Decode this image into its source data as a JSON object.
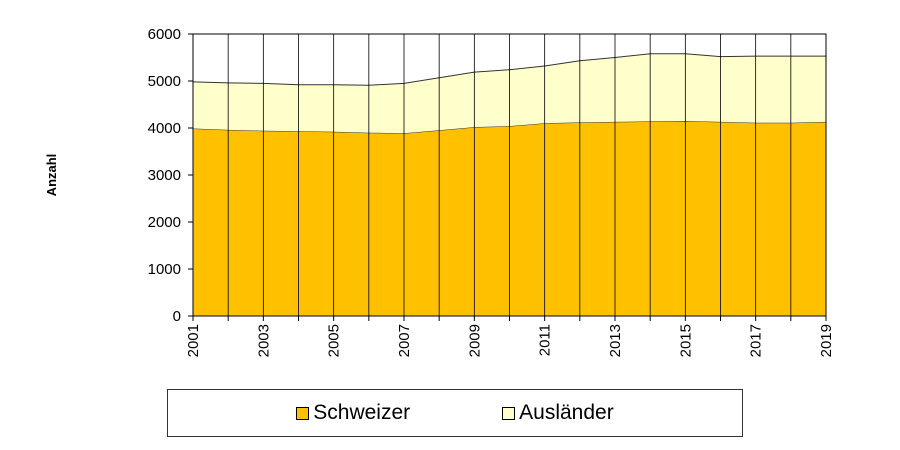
{
  "chart_data": {
    "type": "area",
    "stacked": true,
    "title": "",
    "xlabel": "",
    "ylabel": "Anzahl",
    "ylim": [
      0,
      6000
    ],
    "y_ticks": [
      "0",
      "1000",
      "2000",
      "3000",
      "4000",
      "5000",
      "6000"
    ],
    "x": [
      2001,
      2002,
      2003,
      2004,
      2005,
      2006,
      2007,
      2008,
      2009,
      2010,
      2011,
      2012,
      2013,
      2014,
      2015,
      2016,
      2017,
      2018,
      2019
    ],
    "x_tick_labels": [
      "2001",
      "2003",
      "2005",
      "2007",
      "2009",
      "2011",
      "2013",
      "2015",
      "2017",
      "2019"
    ],
    "series": [
      {
        "name": "Schweizer",
        "color": "#FFC000",
        "values": [
          3990,
          3960,
          3940,
          3930,
          3920,
          3900,
          3890,
          3950,
          4020,
          4040,
          4100,
          4120,
          4130,
          4140,
          4150,
          4130,
          4110,
          4110,
          4130
        ]
      },
      {
        "name": "Ausländer",
        "color": "#FFFFCC",
        "values": [
          990,
          1000,
          1010,
          990,
          1000,
          1010,
          1060,
          1120,
          1170,
          1200,
          1220,
          1310,
          1370,
          1440,
          1430,
          1390,
          1420,
          1420,
          1400
        ]
      }
    ],
    "grid": "vertical lines at each year",
    "legend_position": "bottom"
  }
}
